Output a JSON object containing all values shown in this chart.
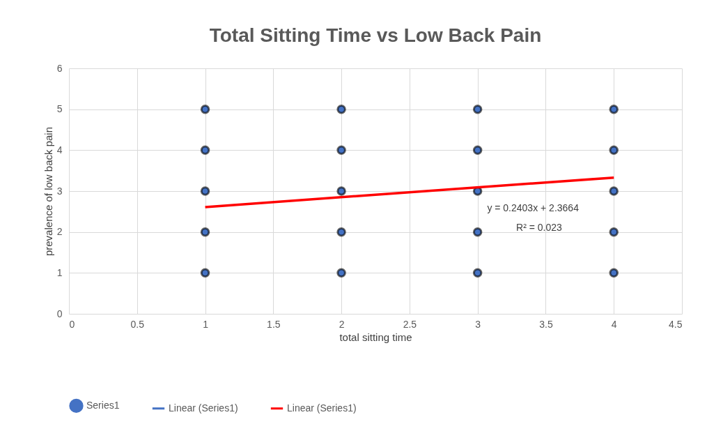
{
  "chart_data": {
    "type": "scatter",
    "title": "Total Sitting Time vs Low Back Pain",
    "xlabel": "total sitting time",
    "ylabel": "prevalence of low back pain",
    "series": [
      {
        "name": "Series1",
        "color": "#4472c4",
        "x": [
          1,
          1,
          1,
          1,
          1,
          2,
          2,
          2,
          2,
          2,
          3,
          3,
          3,
          3,
          3,
          4,
          4,
          4,
          4,
          4
        ],
        "values": [
          1,
          2,
          3,
          4,
          5,
          1,
          2,
          3,
          4,
          5,
          1,
          2,
          3,
          4,
          5,
          1,
          2,
          3,
          4,
          5
        ]
      },
      {
        "name": "Linear (Series1)",
        "type": "line",
        "marker": "none",
        "color": "#4472c4"
      },
      {
        "name": "Linear (Series1)",
        "type": "line",
        "marker": "none",
        "color": "#ff0000",
        "x": [
          1,
          4
        ],
        "values": [
          2.61,
          3.33
        ]
      }
    ],
    "annotations": [
      "y = 0.2403x + 2.3664",
      "R² = 0.023"
    ],
    "xlim": [
      0,
      4.5
    ],
    "xticks": [
      0,
      0.5,
      1,
      1.5,
      2,
      2.5,
      3,
      3.5,
      4,
      4.5
    ],
    "ylim": [
      0,
      6
    ],
    "yticks": [
      0,
      1,
      2,
      3,
      4,
      5,
      6
    ],
    "grid": true,
    "legend": "bottom",
    "marker": "circle"
  }
}
